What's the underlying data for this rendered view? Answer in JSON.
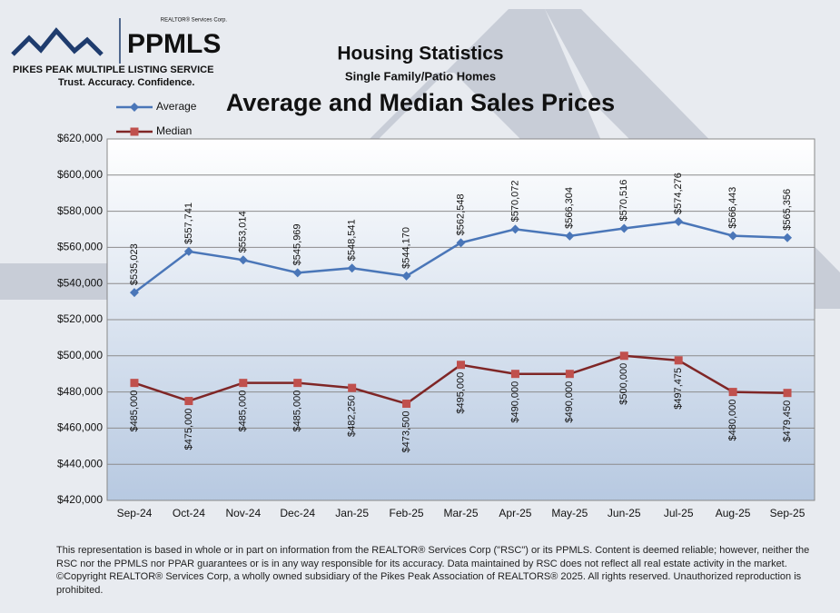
{
  "logo": {
    "name": "PPMLS",
    "corp": "REALTOR® Services Corp.",
    "service": "PIKES PEAK MULTIPLE LISTING SERVICE",
    "tagline": "Trust. Accuracy. Confidence."
  },
  "footnote": "This representation is based in whole or in part on information from the REALTOR® Services Corp (\"RSC\") or its PPMLS. Content is deemed reliable; however, neither the RSC nor the PPMLS nor PPAR guarantees or is in any way responsible for its accuracy. Data maintained by RSC does not reflect all real estate activity in the market. ©Copyright REALTOR® Services Corp, a wholly owned subsidiary of the Pikes Peak Association of REALTORS® 2025. All rights reserved. Unauthorized reproduction is prohibited.",
  "chart_data": {
    "type": "line",
    "title": "Housing Statistics",
    "subtitle": "Single Family/Patio Homes",
    "heading": "Average and Median Sales Prices",
    "categories": [
      "Sep-24",
      "Oct-24",
      "Nov-24",
      "Dec-24",
      "Jan-25",
      "Feb-25",
      "Mar-25",
      "Apr-25",
      "May-25",
      "Jun-25",
      "Jul-25",
      "Aug-25",
      "Sep-25"
    ],
    "series": [
      {
        "name": "Average",
        "color": "#4a76b8",
        "values": [
          535023,
          557741,
          553014,
          545969,
          548541,
          544170,
          562548,
          570072,
          566304,
          570516,
          574276,
          566443,
          565356
        ],
        "value_labels": [
          "$535,023",
          "$557,741",
          "$553,014",
          "$545,969",
          "$548,541",
          "$544,170",
          "$562,548",
          "$570,072",
          "$566,304",
          "$570,516",
          "$574,276",
          "$566,443",
          "$565,356"
        ]
      },
      {
        "name": "Median",
        "color": "#c0504d",
        "values": [
          485000,
          475000,
          485000,
          485000,
          482250,
          473500,
          495000,
          490000,
          490000,
          500000,
          497475,
          480000,
          479450
        ],
        "value_labels": [
          "$485,000",
          "$475,000",
          "$485,000",
          "$485,000",
          "$482,250",
          "$473,500",
          "$495,000",
          "$490,000",
          "$490,000",
          "$500,000",
          "$497,475",
          "$480,000",
          "$479,450"
        ]
      }
    ],
    "ylim": [
      420000,
      620000
    ],
    "yticks": [
      {
        "value": 420000,
        "label": "$420,000"
      },
      {
        "value": 440000,
        "label": "$440,000"
      },
      {
        "value": 460000,
        "label": "$460,000"
      },
      {
        "value": 480000,
        "label": "$480,000"
      },
      {
        "value": 500000,
        "label": "$500,000"
      },
      {
        "value": 520000,
        "label": "$520,000"
      },
      {
        "value": 540000,
        "label": "$540,000"
      },
      {
        "value": 560000,
        "label": "$560,000"
      },
      {
        "value": 580000,
        "label": "$580,000"
      },
      {
        "value": 600000,
        "label": "$600,000"
      },
      {
        "value": 620000,
        "label": "$620,000"
      }
    ],
    "grid": true,
    "legend": "top-left"
  }
}
